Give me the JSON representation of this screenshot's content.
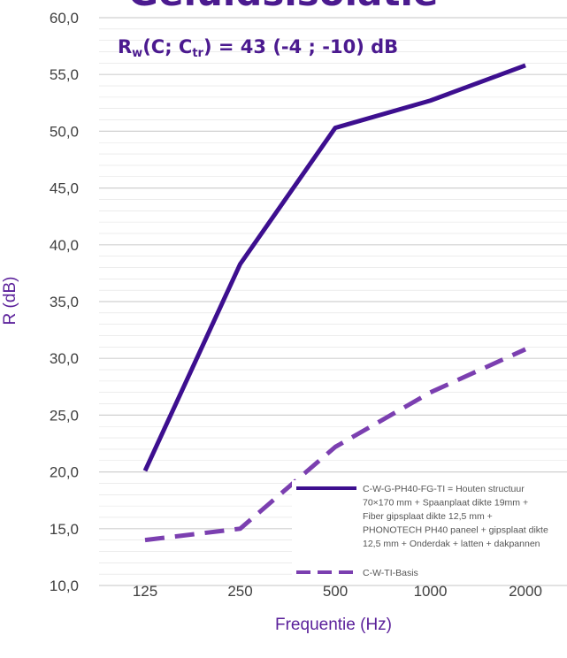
{
  "page": {
    "title_fragment": "Geluidsisolatie",
    "rating": {
      "symbol": "R",
      "symbol_sub": "w",
      "open": "(C; C",
      "ctr_sub": "tr",
      "close": ") = 43 (-4 ; -10) dB"
    }
  },
  "colors": {
    "series1": "#3d0f8f",
    "series2": "#7b3fb0",
    "grid": "#e0e0e0",
    "text_accent": "#5a1f9a"
  },
  "chart_data": {
    "type": "line",
    "xlabel": "Frequentie (Hz)",
    "ylabel": "R (dB)",
    "categories": [
      "125",
      "250",
      "500",
      "1000",
      "2000"
    ],
    "y_ticks": [
      "10,0",
      "15,0",
      "20,0",
      "25,0",
      "30,0",
      "35,0",
      "40,0",
      "45,0",
      "50,0",
      "55,0",
      "60,0"
    ],
    "ylim": [
      10,
      60
    ],
    "grid": true,
    "legend_position": "bottom-right",
    "series": [
      {
        "name": "C-W-G-PH40-FG-TI = Houten structuur 70×170 mm + Spaanplaat dikte 19mm + Fiber gipsplaat dikte 12,5 mm + PHONOTECH PH40 paneel + gipsplaat dikte 12,5 mm + Onderdak + latten + dakpannen",
        "legend_lines": [
          "C-W-G-PH40-FG-TI = Houten structuur",
          "70×170 mm + Spaanplaat dikte 19mm +",
          "Fiber gipsplaat dikte 12,5 mm +",
          "PHONOTECH PH40 paneel + gipsplaat dikte",
          "12,5 mm + Onderdak + latten + dakpannen"
        ],
        "style": "solid",
        "values": [
          20.1,
          38.3,
          50.3,
          52.7,
          55.8
        ]
      },
      {
        "name": "C-W-TI-Basis",
        "legend_lines": [
          "C-W-TI-Basis"
        ],
        "style": "dashed",
        "values": [
          14.0,
          15.0,
          22.2,
          27.0,
          30.8
        ]
      }
    ]
  }
}
